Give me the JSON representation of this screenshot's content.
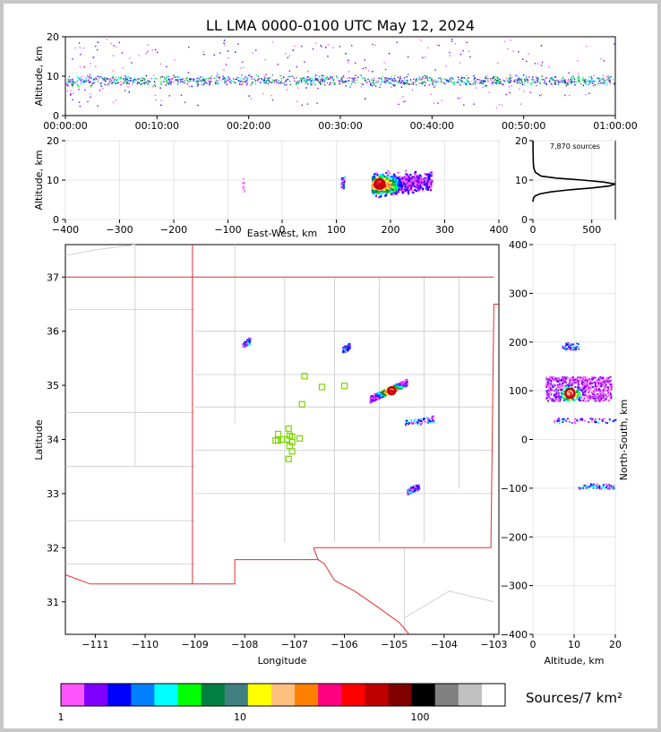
{
  "title": "LL LMA 0000-0100 UTC May 12, 2024",
  "colorbar_label": "Sources/7 km²",
  "chart_data": [
    {
      "id": "time-height",
      "type": "scatter",
      "xlabel": "",
      "ylabel": "Altitude, km",
      "xlim": [
        "00:00:00",
        "01:00:00"
      ],
      "ylim": [
        0,
        20
      ],
      "xticks": [
        "00:00:00",
        "00:10:00",
        "00:20:00",
        "00:30:00",
        "00:40:00",
        "00:50:00",
        "01:00:00"
      ],
      "yticks": [
        "0",
        "10",
        "20"
      ],
      "band_altitude_km": [
        7,
        11
      ]
    },
    {
      "id": "ew-height",
      "type": "heatmap",
      "xlabel": "East-West, km",
      "ylabel": "Altitude, km",
      "xlim": [
        -400,
        400
      ],
      "ylim": [
        0,
        20
      ],
      "xticks": [
        "−400",
        "−300",
        "−200",
        "−100",
        "0",
        "100",
        "200",
        "300",
        "400"
      ],
      "yticks": [
        "0",
        "10",
        "20"
      ],
      "clusters": [
        {
          "x": [
            165,
            275
          ],
          "z": [
            5,
            19
          ],
          "peak_x": 180,
          "peak_z": 9
        },
        {
          "x": [
            105,
            115
          ],
          "z": [
            8,
            11
          ]
        },
        {
          "x": [
            -75,
            -70
          ],
          "z": [
            7,
            11
          ]
        }
      ]
    },
    {
      "id": "altitude-histogram",
      "type": "line",
      "annotation": "7,870 sources",
      "xlim": [
        0,
        700
      ],
      "ylim": [
        0,
        20
      ],
      "xticks": [
        "0",
        "500"
      ],
      "yticks": [
        "0",
        "10",
        "20"
      ],
      "x": [
        0,
        2,
        5,
        20,
        60,
        150,
        300,
        500,
        650,
        700,
        600,
        420,
        200,
        70,
        20,
        8,
        4,
        2,
        1,
        0.5
      ],
      "y": [
        4.5,
        5,
        5.5,
        6,
        6.5,
        7,
        7.5,
        8,
        8.5,
        9,
        9.5,
        10,
        10.5,
        11,
        12,
        13,
        14,
        16,
        18,
        20
      ]
    },
    {
      "id": "plan-view",
      "type": "heatmap",
      "xlabel": "Longitude",
      "ylabel": "Latitude",
      "xlim": [
        -111.6,
        -102.9
      ],
      "ylim": [
        30.4,
        37.6
      ],
      "xticks": [
        "−111",
        "−110",
        "−109",
        "−108",
        "−107",
        "−106",
        "−105",
        "−104",
        "−103"
      ],
      "yticks": [
        "31",
        "32",
        "33",
        "34",
        "35",
        "36",
        "37"
      ],
      "stations": [
        [
          -106.8,
          35.17
        ],
        [
          -106.45,
          34.97
        ],
        [
          -106.0,
          34.99
        ],
        [
          -106.85,
          34.65
        ],
        [
          -107.33,
          34.1
        ],
        [
          -107.33,
          33.98
        ],
        [
          -107.12,
          34.2
        ],
        [
          -107.1,
          34.07
        ],
        [
          -107.25,
          34.0
        ],
        [
          -107.15,
          34.0
        ],
        [
          -107.05,
          33.95
        ],
        [
          -107.05,
          34.05
        ],
        [
          -106.9,
          34.02
        ],
        [
          -107.05,
          33.78
        ],
        [
          -107.12,
          33.64
        ],
        [
          -107.38,
          33.98
        ],
        [
          -107.1,
          33.88
        ]
      ],
      "clusters": [
        {
          "lon": [
            -105.5,
            -104.75
          ],
          "lat": [
            34.75,
            35.1
          ],
          "peak_lon": -105.05,
          "peak_lat": 34.9
        },
        {
          "lon": [
            -104.8,
            -104.2
          ],
          "lat": [
            34.3,
            34.4
          ]
        },
        {
          "lon": [
            -104.75,
            -104.5
          ],
          "lat": [
            33.05,
            33.15
          ]
        },
        {
          "lon": [
            -106.05,
            -105.9
          ],
          "lat": [
            35.65,
            35.75
          ]
        },
        {
          "lon": [
            -108.05,
            -107.9
          ],
          "lat": [
            35.75,
            35.85
          ]
        }
      ]
    },
    {
      "id": "ns-height",
      "type": "heatmap",
      "xlabel": "Altitude, km",
      "ylabel": "North-South, km",
      "xlim": [
        0,
        20
      ],
      "ylim": [
        -400,
        400
      ],
      "xticks": [
        "0",
        "10",
        "20"
      ],
      "yticks": [
        "400",
        "300",
        "200",
        "100",
        "0",
        "−100",
        "−200",
        "−300",
        "−400"
      ],
      "clusters": [
        {
          "z": [
            3,
            19
          ],
          "y": [
            80,
            130
          ],
          "peak_z": 9,
          "peak_y": 95
        },
        {
          "z": [
            7,
            11
          ],
          "y": [
            185,
            200
          ]
        },
        {
          "z": [
            5,
            20
          ],
          "y": [
            35,
            45
          ]
        },
        {
          "z": [
            11,
            20
          ],
          "y": [
            -90,
            -100
          ]
        }
      ]
    }
  ],
  "colorbar": {
    "colors": [
      "#ff55ff",
      "#8000ff",
      "#0000ff",
      "#0080ff",
      "#00ffff",
      "#00ff00",
      "#008040",
      "#408080",
      "#ffff00",
      "#ffc080",
      "#ff8000",
      "#ff0080",
      "#ff0000",
      "#c00000",
      "#800000",
      "#000000",
      "#808080",
      "#c0c0c0",
      "#ffffff"
    ],
    "tick_labels": [
      "1",
      "10",
      "100"
    ]
  }
}
